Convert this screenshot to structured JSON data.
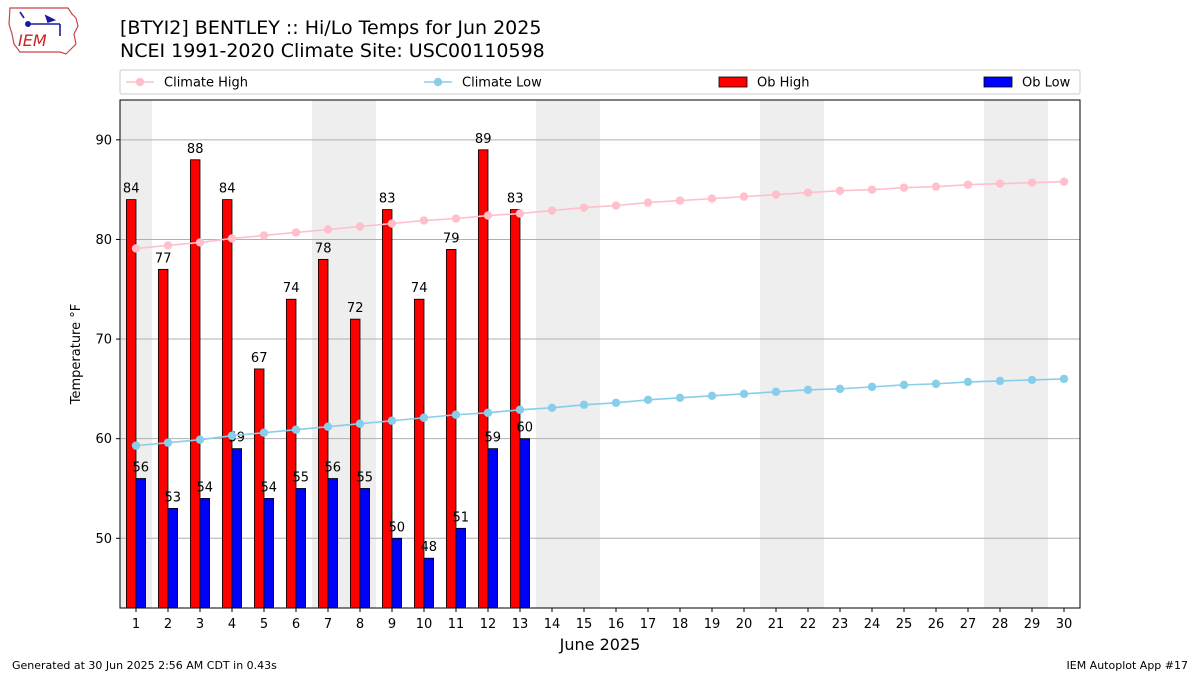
{
  "header": {
    "title_line1": "[BTYI2] BENTLEY :: Hi/Lo Temps for Jun 2025",
    "title_line2": "NCEI 1991-2020 Climate Site: USC00110598",
    "logo_text": "IEM"
  },
  "footer": {
    "generated": "Generated at 30 Jun 2025 2:56 AM CDT in 0.43s",
    "app": "IEM Autoplot App #17"
  },
  "colors": {
    "ob_high": "#ff0000",
    "ob_low": "#0000ff",
    "climate_high": "#ffc0cb",
    "climate_low": "#87ceeb",
    "weekend_shade": "#eeeeee",
    "grid": "#b0b0b0"
  },
  "chart_data": {
    "type": "bar",
    "xlabel": "June 2025",
    "ylabel": "Temperature °F",
    "ylim": [
      43,
      94
    ],
    "yticks": [
      50,
      60,
      70,
      80,
      90
    ],
    "xlim": [
      0.5,
      30.5
    ],
    "days": [
      1,
      2,
      3,
      4,
      5,
      6,
      7,
      8,
      9,
      10,
      11,
      12,
      13,
      14,
      15,
      16,
      17,
      18,
      19,
      20,
      21,
      22,
      23,
      24,
      25,
      26,
      27,
      28,
      29,
      30
    ],
    "weekend_shading": [
      [
        0.5,
        1.5
      ],
      [
        6.5,
        8.5
      ],
      [
        13.5,
        15.5
      ],
      [
        20.5,
        22.5
      ],
      [
        27.5,
        29.5
      ]
    ],
    "grid": "horizontal",
    "legend_placement": "top",
    "legend": [
      "Climate High",
      "Climate Low",
      "Ob High",
      "Ob Low"
    ],
    "series": [
      {
        "name": "Ob High",
        "kind": "bar",
        "values": [
          84,
          77,
          88,
          84,
          67,
          74,
          78,
          72,
          83,
          74,
          79,
          89,
          83
        ]
      },
      {
        "name": "Ob Low",
        "kind": "bar",
        "values": [
          56,
          53,
          54,
          59,
          54,
          55,
          56,
          55,
          50,
          48,
          51,
          59,
          60
        ]
      },
      {
        "name": "Climate High",
        "kind": "line",
        "values": [
          79.1,
          79.4,
          79.7,
          80.1,
          80.4,
          80.7,
          81.0,
          81.3,
          81.6,
          81.9,
          82.1,
          82.4,
          82.6,
          82.9,
          83.2,
          83.4,
          83.7,
          83.9,
          84.1,
          84.3,
          84.5,
          84.7,
          84.9,
          85.0,
          85.2,
          85.3,
          85.5,
          85.6,
          85.7,
          85.8
        ]
      },
      {
        "name": "Climate Low",
        "kind": "line",
        "values": [
          59.3,
          59.6,
          59.9,
          60.3,
          60.6,
          60.9,
          61.2,
          61.5,
          61.8,
          62.1,
          62.4,
          62.6,
          62.9,
          63.1,
          63.4,
          63.6,
          63.9,
          64.1,
          64.3,
          64.5,
          64.7,
          64.9,
          65.0,
          65.2,
          65.4,
          65.5,
          65.7,
          65.8,
          65.9,
          66.0
        ]
      }
    ]
  }
}
